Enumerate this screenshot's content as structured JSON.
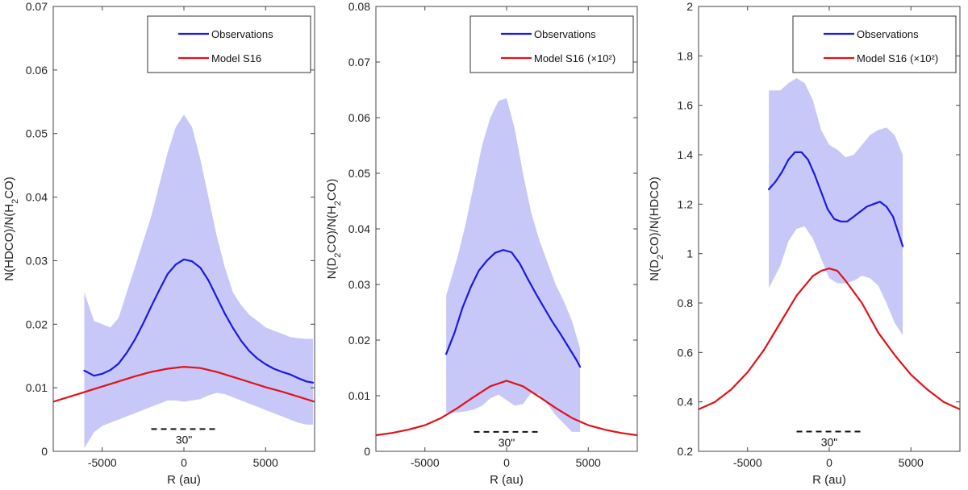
{
  "chart_data": [
    {
      "type": "line",
      "xlabel": "R (au)",
      "ylabel_main": "N(HDCO)/N(H",
      "ylabel_sub": "2",
      "ylabel_end": "CO)",
      "xlim": [
        -8000,
        8000
      ],
      "ylim": [
        0,
        0.07
      ],
      "xticks": [
        -5000,
        0,
        5000
      ],
      "xtick_labels": [
        "-5000",
        "0",
        "5000"
      ],
      "yticks": [
        0,
        0.01,
        0.02,
        0.03,
        0.04,
        0.05,
        0.06,
        0.07
      ],
      "ytick_labels": [
        "0",
        "0.01",
        "0.02",
        "0.03",
        "0.04",
        "0.05",
        "0.06",
        "0.07"
      ],
      "legend": {
        "position": "top-right",
        "obs_label": "Observations",
        "model_label": "Model S16",
        "model_suffix": ""
      },
      "scale_bar": {
        "label": "30\"",
        "x_range": [
          -2000,
          2000
        ],
        "y": 0.0035
      },
      "band": {
        "x": [
          -6100,
          -5500,
          -5000,
          -4500,
          -4000,
          -3500,
          -3000,
          -2500,
          -2000,
          -1500,
          -1000,
          -500,
          0,
          500,
          1000,
          1500,
          2000,
          2500,
          3000,
          3500,
          4000,
          4500,
          5000,
          5500,
          6000,
          6500,
          7000,
          7500,
          7900
        ],
        "upper": [
          0.025,
          0.0205,
          0.02,
          0.0195,
          0.021,
          0.025,
          0.029,
          0.033,
          0.037,
          0.042,
          0.047,
          0.051,
          0.053,
          0.051,
          0.046,
          0.04,
          0.034,
          0.029,
          0.025,
          0.023,
          0.0215,
          0.0205,
          0.0195,
          0.019,
          0.0185,
          0.018,
          0.0178,
          0.0177,
          0.0177
        ],
        "lower": [
          0.0005,
          0.003,
          0.004,
          0.0045,
          0.005,
          0.0055,
          0.006,
          0.0065,
          0.007,
          0.0075,
          0.008,
          0.008,
          0.0078,
          0.008,
          0.0082,
          0.0088,
          0.0092,
          0.009,
          0.0085,
          0.008,
          0.0075,
          0.007,
          0.0065,
          0.006,
          0.0055,
          0.005,
          0.0045,
          0.0042,
          0.0042
        ]
      },
      "series": [
        {
          "name": "Observations",
          "color": "#1a1ae0",
          "x": [
            -6100,
            -5500,
            -5000,
            -4500,
            -4000,
            -3500,
            -3000,
            -2500,
            -2000,
            -1500,
            -1000,
            -500,
            0,
            500,
            1000,
            1500,
            2000,
            2500,
            3000,
            3500,
            4000,
            4500,
            5000,
            5500,
            6000,
            6500,
            7000,
            7500,
            7900
          ],
          "y": [
            0.0127,
            0.0119,
            0.0122,
            0.0128,
            0.0138,
            0.0155,
            0.0176,
            0.0201,
            0.0228,
            0.0254,
            0.0279,
            0.0294,
            0.0302,
            0.0299,
            0.0289,
            0.0269,
            0.0243,
            0.0217,
            0.0194,
            0.0174,
            0.0158,
            0.0146,
            0.0137,
            0.013,
            0.0125,
            0.0121,
            0.0115,
            0.011,
            0.0108
          ]
        },
        {
          "name": "Model S16",
          "color": "#e0121a",
          "x": [
            -8000,
            -7000,
            -6000,
            -5000,
            -4000,
            -3000,
            -2000,
            -1000,
            0,
            1000,
            2000,
            3000,
            4000,
            5000,
            6000,
            7000,
            8000
          ],
          "y": [
            0.0078,
            0.0086,
            0.0094,
            0.0102,
            0.011,
            0.0118,
            0.0125,
            0.013,
            0.0133,
            0.0131,
            0.0125,
            0.0117,
            0.0109,
            0.0101,
            0.0094,
            0.0086,
            0.0078
          ]
        }
      ]
    },
    {
      "type": "line",
      "xlabel": "R (au)",
      "ylabel_main": "N(D",
      "ylabel_sub": "2",
      "ylabel_end": "CO)/N(H",
      "ylabel_sub2": "2",
      "ylabel_end2": "CO)",
      "xlim": [
        -8000,
        8000
      ],
      "ylim": [
        0,
        0.08
      ],
      "xticks": [
        -5000,
        0,
        5000
      ],
      "xtick_labels": [
        "-5000",
        "0",
        "5000"
      ],
      "yticks": [
        0,
        0.01,
        0.02,
        0.03,
        0.04,
        0.05,
        0.06,
        0.07,
        0.08
      ],
      "ytick_labels": [
        "0",
        "0.01",
        "0.02",
        "0.03",
        "0.04",
        "0.05",
        "0.06",
        "0.07",
        "0.08"
      ],
      "legend": {
        "position": "top-right",
        "obs_label": "Observations",
        "model_label": "Model S16",
        "model_suffix": "(×10²)"
      },
      "scale_bar": {
        "label": "30\"",
        "x_range": [
          -2000,
          2000
        ],
        "y": 0.0035
      },
      "band": {
        "x": [
          -3700,
          -3000,
          -2500,
          -2000,
          -1500,
          -1000,
          -500,
          0,
          500,
          1000,
          1500,
          2000,
          2500,
          3000,
          3500,
          4000,
          4500
        ],
        "upper": [
          0.028,
          0.035,
          0.041,
          0.048,
          0.055,
          0.06,
          0.063,
          0.0635,
          0.058,
          0.05,
          0.043,
          0.038,
          0.034,
          0.03,
          0.027,
          0.0235,
          0.0185
        ],
        "lower": [
          0.007,
          0.007,
          0.0072,
          0.0075,
          0.0082,
          0.0095,
          0.0102,
          0.0092,
          0.0082,
          0.0085,
          0.0105,
          0.0102,
          0.0085,
          0.0065,
          0.005,
          0.0035,
          0.0035
        ]
      },
      "series": [
        {
          "name": "Observations",
          "color": "#1a1ae0",
          "x": [
            -3700,
            -3200,
            -2700,
            -2200,
            -1700,
            -1200,
            -700,
            -200,
            300,
            800,
            1300,
            1800,
            2300,
            2800,
            3300,
            3800,
            4300,
            4500
          ],
          "y": [
            0.0175,
            0.0212,
            0.0258,
            0.0295,
            0.0325,
            0.0343,
            0.0357,
            0.0362,
            0.0358,
            0.0338,
            0.031,
            0.0283,
            0.0258,
            0.0233,
            0.0211,
            0.0187,
            0.0163,
            0.0152
          ]
        },
        {
          "name": "Model S16 (×10²)",
          "color": "#e0121a",
          "x": [
            -8000,
            -7000,
            -6000,
            -5000,
            -4000,
            -3000,
            -2000,
            -1000,
            0,
            1000,
            2000,
            3000,
            4000,
            5000,
            6000,
            7000,
            8000
          ],
          "y": [
            0.0029,
            0.0033,
            0.0039,
            0.0047,
            0.006,
            0.0078,
            0.0098,
            0.0117,
            0.0127,
            0.0117,
            0.0098,
            0.0078,
            0.006,
            0.0047,
            0.0039,
            0.0033,
            0.0029
          ]
        }
      ]
    },
    {
      "type": "line",
      "xlabel": "R (au)",
      "ylabel_main": "N(D",
      "ylabel_sub": "2",
      "ylabel_end": "CO)/N(HDCO)",
      "xlim": [
        -8000,
        8000
      ],
      "ylim": [
        0.2,
        2.0
      ],
      "xticks": [
        -5000,
        0,
        5000
      ],
      "xtick_labels": [
        "-5000",
        "0",
        "5000"
      ],
      "yticks": [
        0.2,
        0.4,
        0.6,
        0.8,
        1.0,
        1.2,
        1.4,
        1.6,
        1.8,
        2.0
      ],
      "ytick_labels": [
        "0.2",
        "0.4",
        "0.6",
        "0.8",
        "1",
        "1.2",
        "1.4",
        "1.6",
        "1.8",
        "2"
      ],
      "legend": {
        "position": "top-right",
        "obs_label": "Observations",
        "model_label": "Model S16",
        "model_suffix": "(×10²)"
      },
      "scale_bar": {
        "label": "30\"",
        "x_range": [
          -2000,
          2000
        ],
        "y": 0.28
      },
      "band": {
        "x": [
          -3700,
          -3000,
          -2500,
          -2000,
          -1500,
          -1000,
          -500,
          0,
          500,
          1000,
          1500,
          2000,
          2500,
          3000,
          3500,
          4000,
          4500
        ],
        "upper": [
          1.66,
          1.66,
          1.69,
          1.71,
          1.69,
          1.62,
          1.5,
          1.44,
          1.42,
          1.39,
          1.4,
          1.44,
          1.48,
          1.5,
          1.51,
          1.48,
          1.4
        ],
        "lower": [
          0.86,
          0.95,
          1.05,
          1.1,
          1.11,
          1.06,
          0.98,
          0.9,
          0.88,
          0.88,
          0.89,
          0.91,
          0.9,
          0.87,
          0.8,
          0.72,
          0.67
        ]
      },
      "series": [
        {
          "name": "Observations",
          "color": "#1a1ae0",
          "x": [
            -3700,
            -3300,
            -2900,
            -2500,
            -2100,
            -1700,
            -1300,
            -900,
            -500,
            -100,
            300,
            700,
            1100,
            1500,
            1900,
            2300,
            2700,
            3100,
            3500,
            3900,
            4300,
            4500
          ],
          "y": [
            1.26,
            1.29,
            1.33,
            1.38,
            1.41,
            1.41,
            1.38,
            1.32,
            1.25,
            1.18,
            1.14,
            1.13,
            1.13,
            1.15,
            1.17,
            1.19,
            1.2,
            1.21,
            1.19,
            1.15,
            1.07,
            1.03
          ]
        },
        {
          "name": "Model S16 (×10²)",
          "color": "#e0121a",
          "x": [
            -8000,
            -7000,
            -6000,
            -5000,
            -4000,
            -3000,
            -2000,
            -1000,
            -500,
            0,
            500,
            1000,
            2000,
            3000,
            4000,
            5000,
            6000,
            7000,
            8000
          ],
          "y": [
            0.37,
            0.4,
            0.45,
            0.52,
            0.61,
            0.72,
            0.83,
            0.91,
            0.93,
            0.94,
            0.93,
            0.89,
            0.8,
            0.68,
            0.59,
            0.51,
            0.45,
            0.4,
            0.37
          ]
        }
      ]
    }
  ]
}
